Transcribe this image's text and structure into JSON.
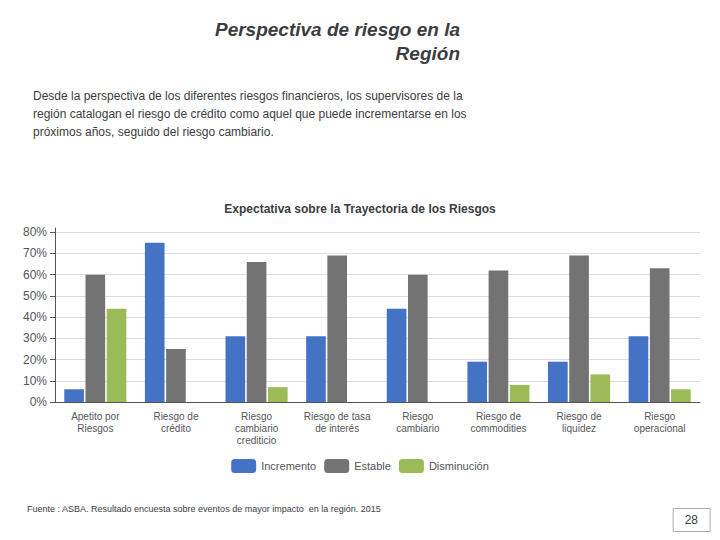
{
  "chart_data": {
    "type": "bar",
    "title": "Expectativa sobre la Trayectoria de los Riesgos",
    "subtitle": "Desde la perspectiva de los diferentes riesgos financieros, los supervisores de la\nregión catalogan el riesgo de crédito como aquel que puede incrementarse en los\npróximos años, seguido del riesgo cambiario.",
    "annotations": [
      "Perspectiva de riesgo en la\nRegión",
      "Fuente : ASBA. Resultado encuesta sobre eventos de mayor impacto  en la región. 2015",
      "28"
    ],
    "categories": [
      "Apetito por\nRiesgos",
      "Riesgo de\ncrédito",
      "Riesgo\ncambiario\ncrediticio",
      "Riesgo de tasa\nde interés",
      "Riesgo\ncambiario",
      "Riesgo de\ncommodities",
      "Riesgo de\nliquidez",
      "Riesgo\noperacional"
    ],
    "series": [
      {
        "name": "Incremento",
        "color": "#4472C4",
        "values": [
          6,
          75,
          31,
          31,
          44,
          19,
          19,
          31
        ]
      },
      {
        "name": "Estable",
        "color": "#737373",
        "values": [
          60,
          25,
          66,
          69,
          60,
          62,
          69,
          63
        ]
      },
      {
        "name": "Disminución",
        "color": "#9BBB59",
        "values": [
          44,
          0,
          7,
          0,
          0,
          8,
          13,
          6
        ]
      }
    ],
    "ylim": [
      0,
      82
    ],
    "yticks": [
      {
        "value": 0,
        "label": "0%"
      },
      {
        "value": 10,
        "label": "10%"
      },
      {
        "value": 20,
        "label": "20%"
      },
      {
        "value": 30,
        "label": "30%"
      },
      {
        "value": 40,
        "label": "40%"
      },
      {
        "value": 50,
        "label": "50%"
      },
      {
        "value": 60,
        "label": "60%"
      },
      {
        "value": 70,
        "label": "70%"
      },
      {
        "value": 80,
        "label": "80%"
      }
    ],
    "grid": true,
    "legend": "bottom"
  }
}
